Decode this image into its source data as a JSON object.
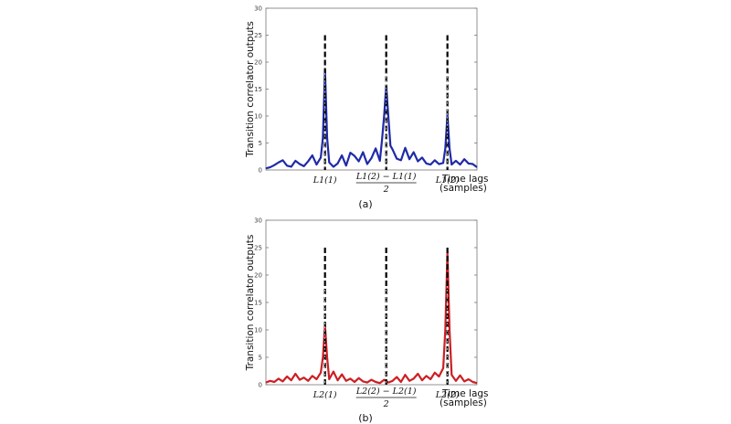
{
  "colors": {
    "series_a": "#1f2aa8",
    "series_b": "#cc1f24",
    "marker": "#000000",
    "axes": "#555555"
  },
  "chart_data": [
    {
      "type": "line",
      "caption": "(a)",
      "ylabel": "Transition correlator outputs",
      "xlabel_line1": "Time lags",
      "xlabel_line2": "(samples)",
      "ylim": [
        0,
        30
      ],
      "yticks": [
        "0",
        "5",
        "10",
        "15",
        "20",
        "25",
        "30"
      ],
      "xlim": [
        0,
        100
      ],
      "grid": false,
      "markers": [
        {
          "x": 28,
          "label": "L1(1)",
          "frac": false
        },
        {
          "x": 57,
          "label_num": "L1(2) − L1(1)",
          "label_den": "2",
          "frac": true
        },
        {
          "x": 86,
          "label": "L1(2)",
          "frac": false
        }
      ],
      "series": [
        {
          "x": [
            0,
            2,
            4,
            6,
            8,
            10,
            12,
            14,
            16,
            18,
            20,
            22,
            24,
            26,
            27,
            28,
            29,
            30,
            32,
            34,
            36,
            38,
            40,
            42,
            44,
            46,
            48,
            50,
            52,
            54,
            55,
            56,
            57,
            58,
            59,
            60,
            62,
            64,
            66,
            68,
            70,
            72,
            74,
            76,
            78,
            80,
            82,
            84,
            85,
            86,
            87,
            88,
            90,
            92,
            94,
            96,
            98,
            100
          ],
          "y": [
            0.3,
            0.5,
            0.9,
            1.4,
            1.8,
            0.8,
            0.6,
            1.7,
            1.1,
            0.7,
            1.6,
            2.7,
            1.0,
            2.3,
            6,
            18.5,
            6,
            1.4,
            0.6,
            1.2,
            2.7,
            0.8,
            3.2,
            2.6,
            1.6,
            3.3,
            1.1,
            2.2,
            4.0,
            1.7,
            5.5,
            10,
            15.6,
            10,
            4.5,
            3.8,
            2.1,
            1.8,
            4.1,
            2.0,
            3.3,
            1.6,
            2.3,
            1.2,
            1.0,
            1.8,
            1.1,
            1.3,
            4,
            10.2,
            4,
            1.0,
            1.7,
            1.0,
            2.0,
            1.2,
            1.1,
            0.5
          ]
        }
      ]
    },
    {
      "type": "line",
      "caption": "(b)",
      "ylabel": "Transition correlator outputs",
      "xlabel_line1": "Time lags",
      "xlabel_line2": "(samples)",
      "ylim": [
        0,
        30
      ],
      "yticks": [
        "0",
        "5",
        "10",
        "15",
        "20",
        "25",
        "30"
      ],
      "xlim": [
        0,
        100
      ],
      "grid": false,
      "markers": [
        {
          "x": 28,
          "label": "L2(1)",
          "frac": false
        },
        {
          "x": 57,
          "label_num": "L2(2) − L2(1)",
          "label_den": "2",
          "frac": true
        },
        {
          "x": 86,
          "label": "L2(2)",
          "frac": false
        }
      ],
      "series": [
        {
          "x": [
            0,
            2,
            4,
            6,
            8,
            10,
            12,
            14,
            16,
            18,
            20,
            22,
            24,
            26,
            27,
            28,
            29,
            30,
            32,
            34,
            36,
            38,
            40,
            42,
            44,
            46,
            48,
            50,
            52,
            54,
            56,
            58,
            60,
            62,
            64,
            66,
            68,
            70,
            72,
            74,
            76,
            78,
            80,
            82,
            84,
            85,
            86,
            87,
            88,
            90,
            92,
            94,
            96,
            98,
            100
          ],
          "y": [
            0.4,
            0.7,
            0.5,
            1.1,
            0.6,
            1.5,
            0.8,
            2.0,
            0.9,
            1.3,
            0.7,
            1.6,
            1.0,
            2.2,
            5,
            10.8,
            5,
            1.0,
            2.4,
            0.8,
            1.9,
            0.7,
            1.1,
            0.5,
            1.2,
            0.6,
            0.4,
            0.9,
            0.5,
            0.3,
            0.9,
            0.4,
            0.7,
            1.4,
            0.5,
            1.8,
            0.7,
            1.1,
            2.0,
            0.8,
            1.6,
            1.0,
            2.2,
            1.5,
            3.0,
            10,
            24.2,
            10,
            1.8,
            0.7,
            1.7,
            0.6,
            1.0,
            0.5,
            0.3
          ]
        }
      ]
    }
  ]
}
